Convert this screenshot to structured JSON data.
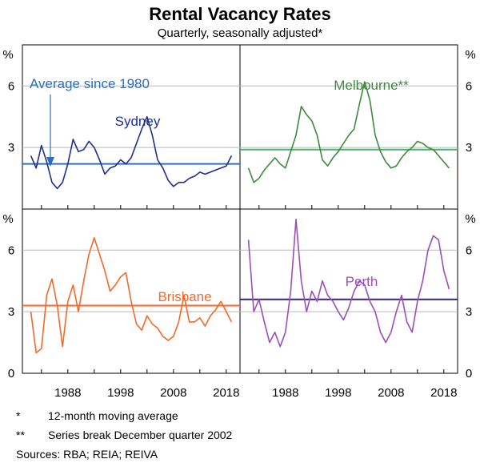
{
  "chart_data": {
    "type": "line",
    "title": "Rental Vacancy Rates",
    "subtitle": "Quarterly, seasonally adjusted*",
    "unit_label": "%",
    "ylim": [
      0,
      8
    ],
    "yticks": [
      "0",
      "3",
      "6"
    ],
    "xlim": [
      1980,
      2020
    ],
    "xticks": [
      "1988",
      "1998",
      "2008",
      "2018"
    ],
    "xtick_values": [
      1988,
      1998,
      2008,
      2018
    ],
    "ytick_values": [
      0,
      3,
      6
    ],
    "grid": true,
    "average_annotation": "Average since 1980",
    "colors": {
      "average_annotation": "#2a6fbf"
    },
    "panels": [
      {
        "name": "Sydney",
        "color": "#1f2f8a",
        "avg_color": "#2a6fbf",
        "average": 2.2,
        "x": [
          1981,
          1982,
          1983,
          1984,
          1985,
          1986,
          1987,
          1988,
          1989,
          1990,
          1991,
          1992,
          1993,
          1994,
          1995,
          1996,
          1997,
          1998,
          1999,
          2000,
          2001,
          2002,
          2003,
          2004,
          2005,
          2006,
          2007,
          2008,
          2009,
          2010,
          2011,
          2012,
          2013,
          2014,
          2015,
          2016,
          2017,
          2018,
          2019
        ],
        "values": [
          2.6,
          2.0,
          3.1,
          2.3,
          1.3,
          1.0,
          1.3,
          2.2,
          3.4,
          2.8,
          2.9,
          3.3,
          3.0,
          2.4,
          1.7,
          2.0,
          2.1,
          2.4,
          2.2,
          2.5,
          3.2,
          3.9,
          4.5,
          3.6,
          2.4,
          2.0,
          1.4,
          1.1,
          1.3,
          1.3,
          1.5,
          1.6,
          1.8,
          1.7,
          1.8,
          1.9,
          2.0,
          2.1,
          2.6
        ]
      },
      {
        "name": "Melbourne**",
        "color": "#3f8a3f",
        "avg_color": "#47b36b",
        "average": 2.9,
        "x": [
          1981,
          1982,
          1983,
          1984,
          1985,
          1986,
          1987,
          1988,
          1989,
          1990,
          1991,
          1992,
          1993,
          1994,
          1995,
          1996,
          1997,
          1998,
          1999,
          2000,
          2001,
          2002,
          2003,
          2004,
          2005,
          2006,
          2007,
          2008,
          2009,
          2010,
          2011,
          2012,
          2013,
          2014,
          2015,
          2016,
          2017,
          2018,
          2019
        ],
        "values": [
          2.0,
          1.3,
          1.5,
          1.9,
          2.2,
          2.5,
          2.2,
          2.0,
          2.8,
          3.6,
          5.0,
          4.6,
          4.3,
          3.6,
          2.4,
          2.1,
          2.5,
          2.8,
          3.2,
          3.6,
          3.9,
          5.1,
          6.2,
          5.3,
          3.6,
          2.8,
          2.3,
          2.0,
          2.1,
          2.5,
          2.8,
          3.0,
          3.3,
          3.2,
          3.0,
          2.9,
          2.6,
          2.3,
          2.0
        ]
      },
      {
        "name": "Brisbane",
        "color": "#f06a2a",
        "avg_color": "#f06a2a",
        "average": 3.3,
        "x": [
          1981,
          1982,
          1983,
          1984,
          1985,
          1986,
          1987,
          1988,
          1989,
          1990,
          1991,
          1992,
          1993,
          1994,
          1995,
          1996,
          1997,
          1998,
          1999,
          2000,
          2001,
          2002,
          2003,
          2004,
          2005,
          2006,
          2007,
          2008,
          2009,
          2010,
          2011,
          2012,
          2013,
          2014,
          2015,
          2016,
          2017,
          2018,
          2019
        ],
        "values": [
          3.0,
          1.0,
          1.2,
          3.8,
          4.6,
          3.3,
          1.3,
          3.5,
          4.3,
          3.0,
          4.5,
          5.8,
          6.6,
          5.8,
          5.0,
          4.0,
          4.3,
          4.7,
          4.9,
          3.5,
          2.4,
          2.1,
          2.8,
          2.4,
          2.2,
          1.8,
          1.6,
          1.8,
          2.5,
          3.8,
          2.5,
          2.5,
          2.7,
          2.3,
          2.8,
          3.1,
          3.5,
          3.0,
          2.5
        ]
      },
      {
        "name": "Perth",
        "color": "#9b4fb5",
        "avg_color": "#3a2477",
        "average": 3.6,
        "x": [
          1981,
          1982,
          1983,
          1984,
          1985,
          1986,
          1987,
          1988,
          1989,
          1990,
          1991,
          1992,
          1993,
          1994,
          1995,
          1996,
          1997,
          1998,
          1999,
          2000,
          2001,
          2002,
          2003,
          2004,
          2005,
          2006,
          2007,
          2008,
          2009,
          2010,
          2011,
          2012,
          2013,
          2014,
          2015,
          2016,
          2017,
          2018,
          2019
        ],
        "values": [
          6.5,
          3.0,
          3.6,
          2.5,
          1.5,
          2.0,
          1.3,
          2.0,
          4.0,
          7.5,
          4.5,
          3.0,
          4.0,
          3.5,
          4.5,
          3.8,
          3.5,
          3.0,
          2.6,
          3.2,
          4.0,
          4.5,
          4.3,
          3.5,
          3.0,
          2.0,
          1.5,
          2.0,
          3.0,
          3.8,
          2.5,
          2.0,
          3.5,
          4.5,
          6.0,
          6.7,
          6.5,
          5.0,
          4.1
        ]
      }
    ],
    "footnotes": [
      {
        "mark": "*",
        "text": "12-month moving average"
      },
      {
        "mark": "**",
        "text": "Series break December quarter 2002"
      }
    ],
    "sources": "Sources: RBA; REIA; REIVA"
  }
}
